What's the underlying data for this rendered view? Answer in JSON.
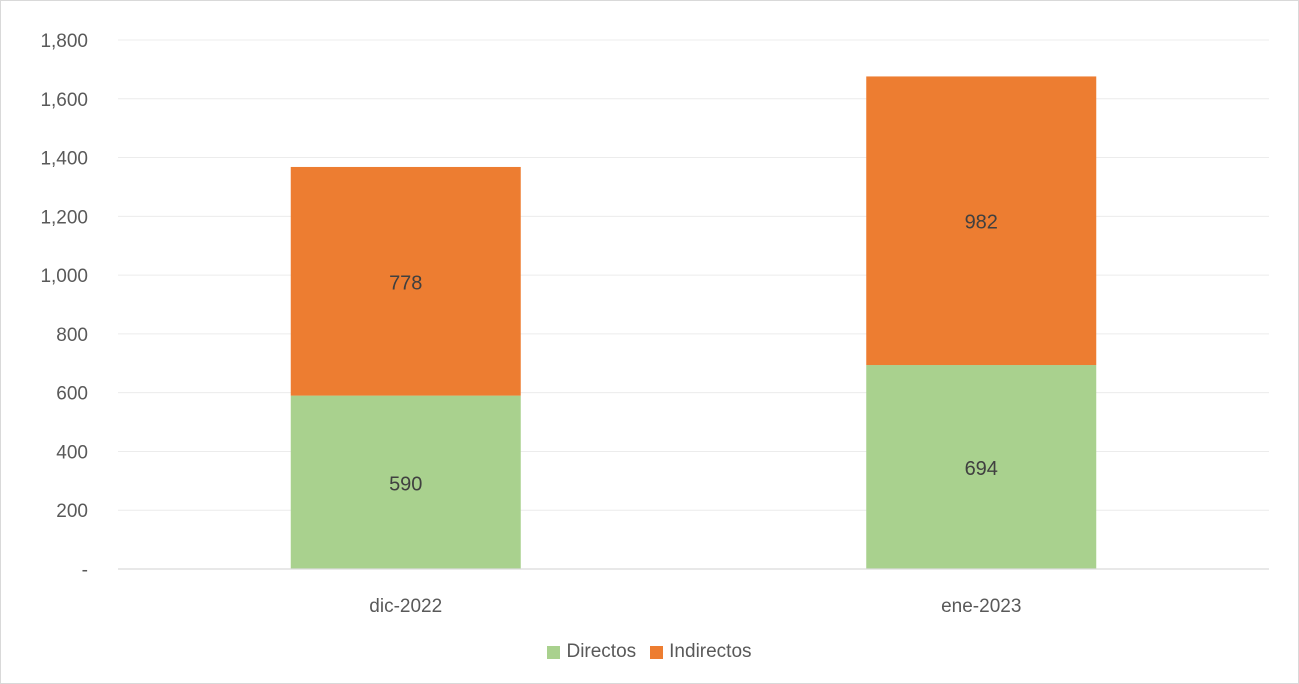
{
  "chart_data": {
    "type": "bar",
    "stacked": true,
    "categories": [
      "dic-2022",
      "ene-2023"
    ],
    "series": [
      {
        "name": "Directos",
        "values": [
          590,
          694
        ],
        "color": "#a9d18e"
      },
      {
        "name": "Indirectos",
        "values": [
          778,
          982
        ],
        "color": "#ed7d31"
      }
    ],
    "ylim": [
      0,
      1800
    ],
    "yticks": [
      0,
      200,
      400,
      600,
      800,
      1000,
      1200,
      1400,
      1600,
      1800
    ],
    "ytick_labels": [
      "-",
      "200",
      "400",
      "600",
      "800",
      "1,000",
      "1,200",
      "1,400",
      "1,600",
      "1,800"
    ],
    "grid": true,
    "legend_position": "bottom"
  }
}
